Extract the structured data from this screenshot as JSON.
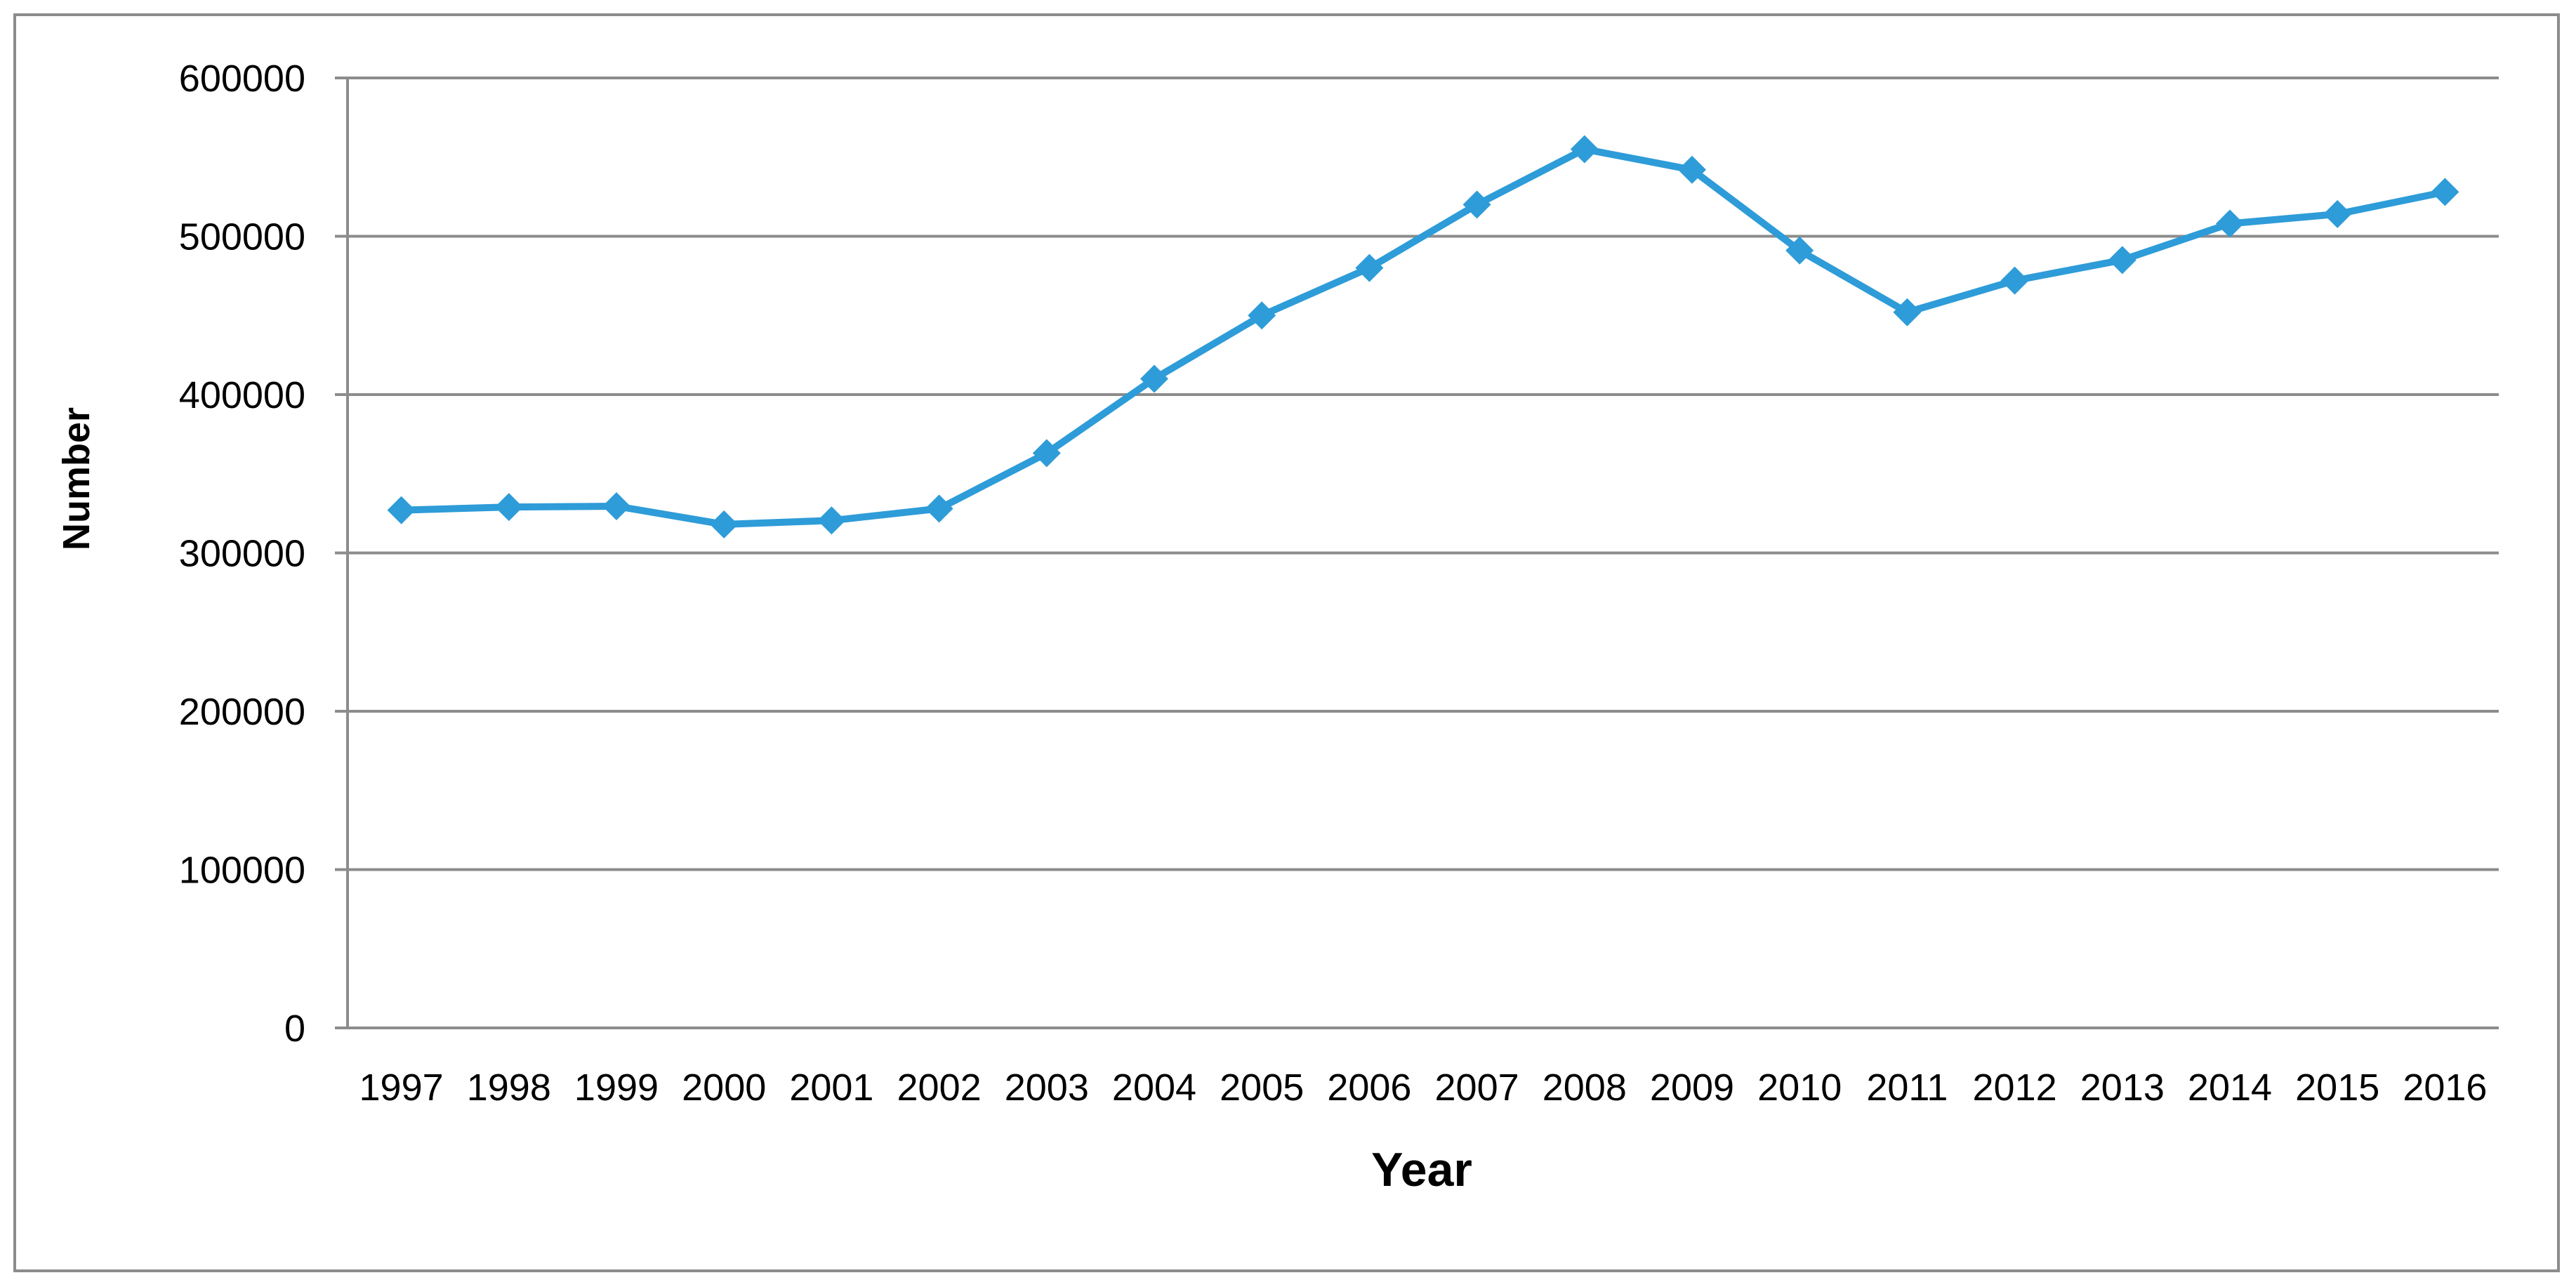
{
  "chart_data": {
    "type": "line",
    "title": "",
    "xlabel": "Year",
    "ylabel": "Number",
    "ylim": [
      0,
      600000
    ],
    "yticks": [
      0,
      100000,
      200000,
      300000,
      400000,
      500000,
      600000
    ],
    "grid": true,
    "legend": "none",
    "categories": [
      "1997",
      "1998",
      "1999",
      "2000",
      "2001",
      "2002",
      "2003",
      "2004",
      "2005",
      "2006",
      "2007",
      "2008",
      "2009",
      "2010",
      "2011",
      "2012",
      "2013",
      "2014",
      "2015",
      "2016"
    ],
    "series": [
      {
        "values": [
          327000,
          329000,
          329500,
          318000,
          320500,
          328000,
          363000,
          410000,
          450000,
          480000,
          520000,
          555000,
          542000,
          491000,
          452000,
          472000,
          485000,
          508000,
          514000,
          528000
        ],
        "color": "#2e9cd8",
        "marker": "diamond"
      }
    ]
  },
  "colors": {
    "line": "#2e9cd8",
    "grid": "#8c8c8c",
    "frame": "#8c8c8c"
  }
}
